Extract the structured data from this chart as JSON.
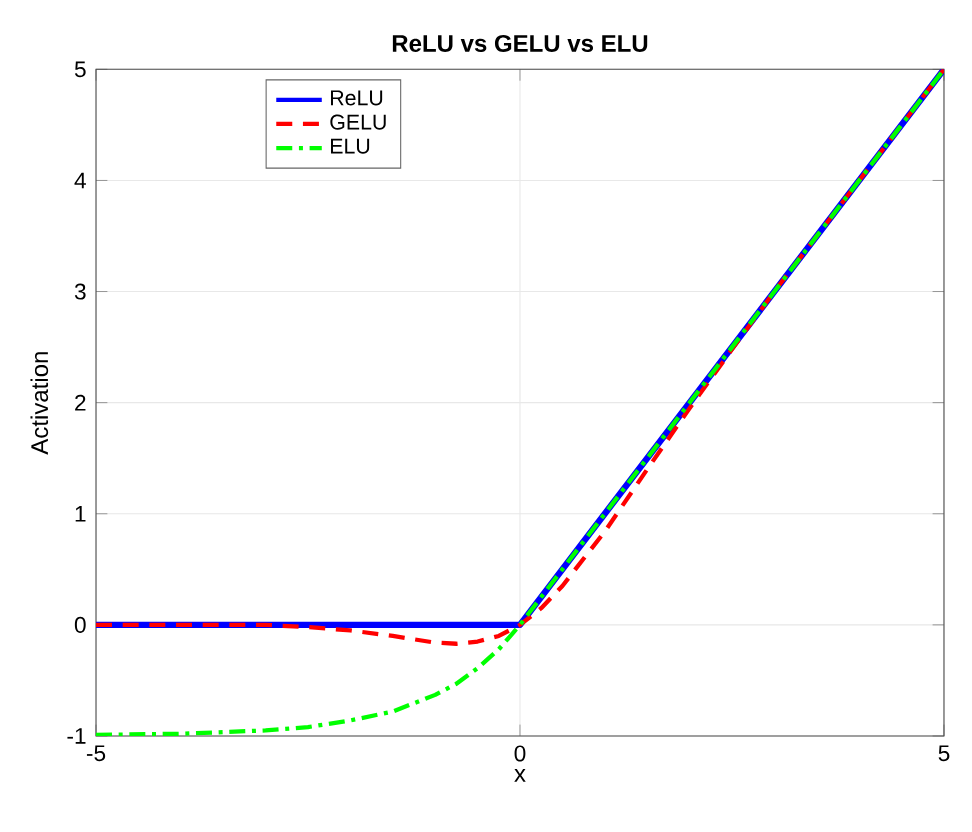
{
  "chart_data": {
    "type": "line",
    "title": "ReLU vs GELU vs ELU",
    "xlabel": "x",
    "ylabel": "Activation",
    "xlim": [
      -5,
      5
    ],
    "ylim": [
      -1,
      5
    ],
    "xticks": [
      -5,
      0,
      5
    ],
    "yticks": [
      -1,
      0,
      1,
      2,
      3,
      4,
      5
    ],
    "grid": true,
    "legend": "top left",
    "series": [
      {
        "name": "ReLU",
        "color": "#0000ff",
        "line_style": "solid",
        "x": [
          -5,
          0,
          5
        ],
        "values": [
          0,
          0,
          5
        ]
      },
      {
        "name": "GELU",
        "color": "#ff0000",
        "line_style": "dashed",
        "x": [
          -5,
          -4,
          -3,
          -2.5,
          -2,
          -1.5,
          -1,
          -0.75,
          -0.5,
          -0.25,
          0,
          0.25,
          0.5,
          1,
          1.5,
          2,
          2.5,
          3,
          4,
          5
        ],
        "values": [
          0,
          0,
          0,
          -0.02,
          -0.05,
          -0.1,
          -0.16,
          -0.17,
          -0.15,
          -0.1,
          0,
          0.15,
          0.35,
          0.84,
          1.4,
          1.95,
          2.48,
          3,
          4,
          5
        ]
      },
      {
        "name": "ELU",
        "color": "#00ff00",
        "line_style": "dashdot",
        "x": [
          -5,
          -4,
          -3,
          -2.5,
          -2,
          -1.5,
          -1,
          -0.75,
          -0.5,
          -0.25,
          0,
          5
        ],
        "values": [
          -0.99,
          -0.98,
          -0.95,
          -0.92,
          -0.86,
          -0.78,
          -0.63,
          -0.53,
          -0.39,
          -0.22,
          0,
          5
        ]
      }
    ]
  }
}
